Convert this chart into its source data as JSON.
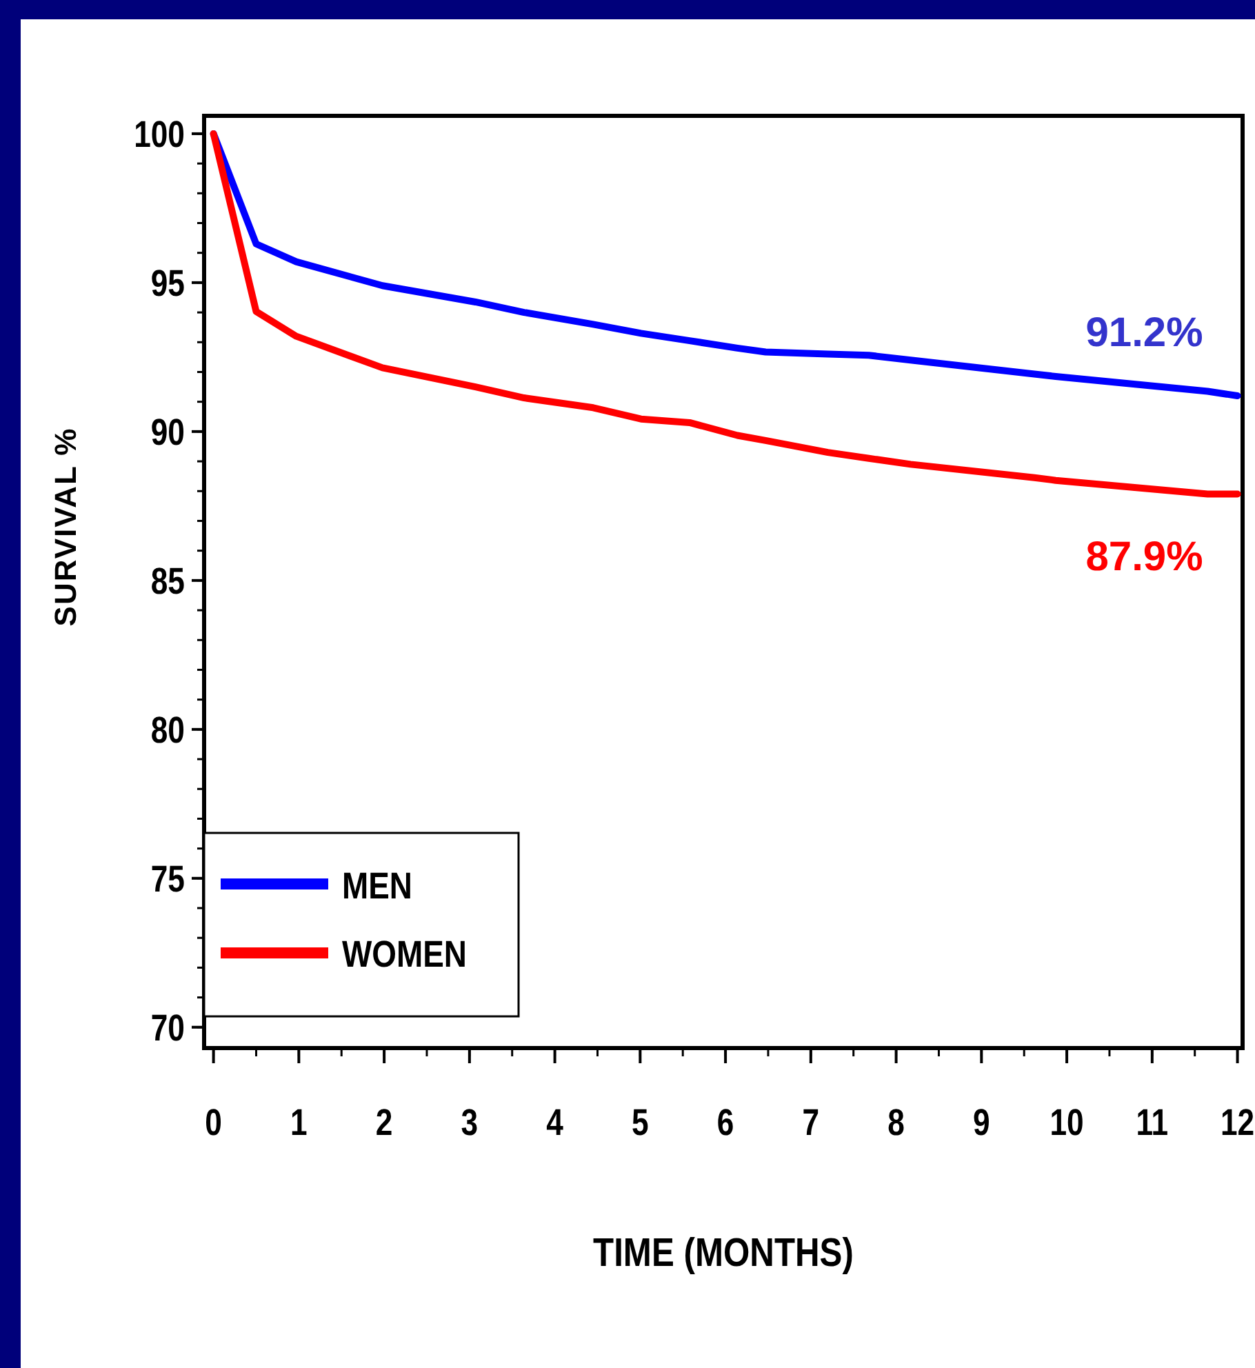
{
  "chart_data": {
    "type": "line",
    "xlabel": "TIME (MONTHS)",
    "ylabel": "SURVIVAL %",
    "x": [
      0,
      0.5,
      0.97,
      1.98,
      3.07,
      3.64,
      4.45,
      5.01,
      5.58,
      6.14,
      6.47,
      7.2,
      7.68,
      8.17,
      9.62,
      9.87,
      11.65,
      12
    ],
    "series": [
      {
        "name": "MEN",
        "color": "#0000ff",
        "values": [
          100,
          96.3,
          95.7,
          94.9,
          94.35,
          94.0,
          93.6,
          93.3,
          93.05,
          92.8,
          92.67,
          92.6,
          92.56,
          92.4,
          91.93,
          91.85,
          91.35,
          91.2
        ]
      },
      {
        "name": "WOMEN",
        "color": "#ff0000",
        "values": [
          100,
          94.03,
          93.2,
          92.14,
          91.5,
          91.13,
          90.8,
          90.42,
          90.3,
          89.87,
          89.7,
          89.3,
          89.1,
          88.9,
          88.45,
          88.36,
          87.9,
          87.9
        ]
      }
    ],
    "annotations": [
      {
        "text": "91.2%",
        "x": 12,
        "y": 91.2
      },
      {
        "text": "87.9%",
        "x": 12,
        "y": 87.9
      }
    ],
    "xlim": [
      -0.11,
      12.06
    ],
    "xticks": [
      0,
      1,
      2,
      3,
      4,
      5,
      6,
      7,
      8,
      9,
      10,
      11,
      12
    ],
    "ylim": [
      69.3,
      100.6
    ],
    "yticks": [
      70,
      75,
      80,
      85,
      90,
      95,
      100
    ],
    "legend": "bottom left",
    "grid": false,
    "marker": "none",
    "line_style": "solid"
  }
}
